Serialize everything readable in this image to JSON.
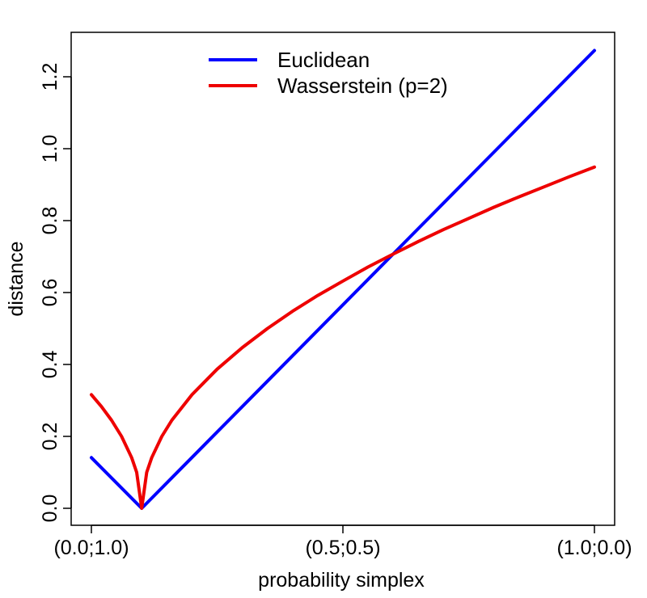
{
  "chart_data": {
    "type": "line",
    "title": "",
    "xlabel": "probability simplex",
    "ylabel": "distance",
    "xlim": [
      0.0,
      1.0
    ],
    "ylim": [
      0.0,
      1.28
    ],
    "x_ticks": [
      {
        "value": 0.0,
        "label": "(0.0;1.0)"
      },
      {
        "value": 0.5,
        "label": "(0.5;0.5)"
      },
      {
        "value": 1.0,
        "label": "(1.0;0.0)"
      }
    ],
    "y_ticks": [
      {
        "value": 0.0,
        "label": "0.0"
      },
      {
        "value": 0.2,
        "label": "0.2"
      },
      {
        "value": 0.4,
        "label": "0.4"
      },
      {
        "value": 0.6,
        "label": "0.6"
      },
      {
        "value": 0.8,
        "label": "0.8"
      },
      {
        "value": 1.0,
        "label": "1.0"
      },
      {
        "value": 1.2,
        "label": "1.2"
      }
    ],
    "legend_position": "top-center",
    "series": [
      {
        "name": "Euclidean",
        "color": "#0000ff",
        "x": [
          0.0,
          0.1,
          1.0
        ],
        "y": [
          0.141,
          0.0,
          1.273
        ]
      },
      {
        "name": "Wasserstein (p=2)",
        "color": "#ee0000",
        "x": [
          0.0,
          0.02,
          0.04,
          0.06,
          0.08,
          0.09,
          0.1,
          0.11,
          0.12,
          0.14,
          0.16,
          0.2,
          0.25,
          0.3,
          0.35,
          0.4,
          0.45,
          0.5,
          0.55,
          0.6,
          0.65,
          0.7,
          0.75,
          0.8,
          0.85,
          0.9,
          0.95,
          1.0
        ],
        "y": [
          0.316,
          0.283,
          0.245,
          0.2,
          0.141,
          0.1,
          0.0,
          0.1,
          0.141,
          0.2,
          0.245,
          0.316,
          0.387,
          0.447,
          0.5,
          0.548,
          0.592,
          0.632,
          0.671,
          0.707,
          0.742,
          0.775,
          0.806,
          0.837,
          0.866,
          0.894,
          0.922,
          0.949
        ]
      }
    ]
  }
}
